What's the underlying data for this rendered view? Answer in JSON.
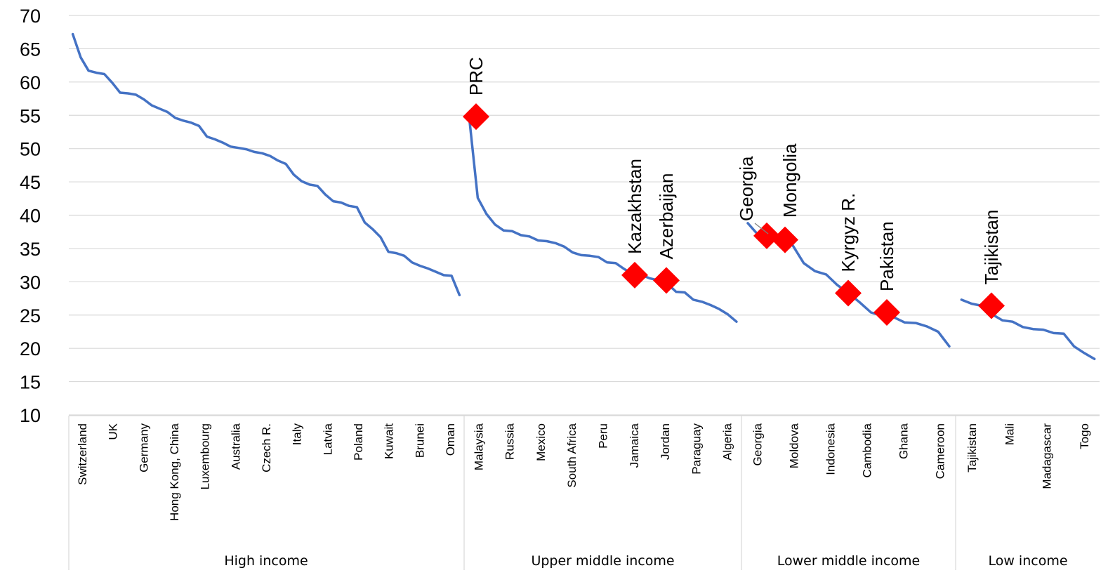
{
  "chart_data": {
    "type": "line",
    "title": "",
    "xlabel": "",
    "ylabel": "",
    "ylim": [
      10,
      70
    ],
    "yticks": [
      10,
      15,
      20,
      25,
      30,
      35,
      40,
      45,
      50,
      55,
      60,
      65,
      70
    ],
    "grid": "horizontal",
    "line_color": "#4472C4",
    "marker_color": "#FF0000",
    "groups": [
      {
        "name": "High income",
        "labels": [
          "Switzerland",
          "UK",
          "Germany",
          "Hong Kong, China",
          "Luxembourg",
          "Australia",
          "Czech R.",
          "Italy",
          "Latvia",
          "Poland",
          "Kuwait",
          "Brunei",
          "Oman"
        ],
        "values": [
          67.2,
          63.7,
          61.7,
          61.4,
          61.2,
          59.9,
          58.4,
          58.3,
          58.1,
          57.4,
          56.5,
          56.0,
          55.5,
          54.6,
          54.2,
          53.9,
          53.4,
          51.8,
          51.4,
          50.9,
          50.3,
          50.1,
          49.9,
          49.5,
          49.3,
          48.9,
          48.2,
          47.7,
          46.1,
          45.1,
          44.6,
          44.4,
          43.1,
          42.1,
          41.9,
          41.4,
          41.2,
          38.9,
          37.9,
          36.7,
          34.5,
          34.3,
          33.9,
          32.9,
          32.4,
          32.0,
          31.5,
          31.0,
          30.9,
          28.0
        ]
      },
      {
        "name": "Upper middle income",
        "labels": [
          "Malaysia",
          "Russia",
          "Mexico",
          "South Africa",
          "Peru",
          "Jamaica",
          "Jordan",
          "Paraguay",
          "Algeria"
        ],
        "values": [
          54.8,
          42.6,
          40.2,
          38.6,
          37.7,
          37.6,
          37.0,
          36.8,
          36.2,
          36.1,
          35.8,
          35.3,
          34.4,
          34.0,
          33.9,
          33.7,
          32.9,
          32.8,
          31.9,
          31.1,
          31.0,
          30.5,
          30.2,
          29.7,
          28.5,
          28.4,
          27.3,
          27.0,
          26.5,
          25.9,
          25.1,
          24.0
        ]
      },
      {
        "name": "Lower middle income",
        "labels": [
          "Georgia",
          "Moldova",
          "Indonesia",
          "Cambodia",
          "Ghana",
          "Cameroon"
        ],
        "values": [
          38.8,
          36.9,
          36.4,
          36.3,
          35.5,
          32.8,
          31.6,
          31.1,
          29.5,
          28.3,
          26.9,
          25.4,
          24.9,
          24.7,
          23.9,
          23.8,
          23.3,
          22.5,
          20.3
        ]
      },
      {
        "name": "Low income",
        "labels": [
          "Tajikistan",
          "Mali",
          "Madagascar",
          "Togo"
        ],
        "values": [
          27.3,
          26.7,
          26.4,
          25.1,
          24.2,
          24.0,
          23.2,
          22.9,
          22.8,
          22.3,
          22.2,
          20.3,
          19.3,
          18.4
        ]
      }
    ],
    "highlights": [
      {
        "label": "PRC",
        "value": 54.8
      },
      {
        "label": "Kazakhstan",
        "value": 31.0
      },
      {
        "label": "Azerbaijan",
        "value": 30.2
      },
      {
        "label": "Georgia",
        "value": 36.9
      },
      {
        "label": "Mongolia",
        "value": 36.3
      },
      {
        "label": "Kyrgyz R.",
        "value": 28.3
      },
      {
        "label": "Pakistan",
        "value": 25.4
      },
      {
        "label": "Tajikistan",
        "value": 26.4
      }
    ]
  }
}
